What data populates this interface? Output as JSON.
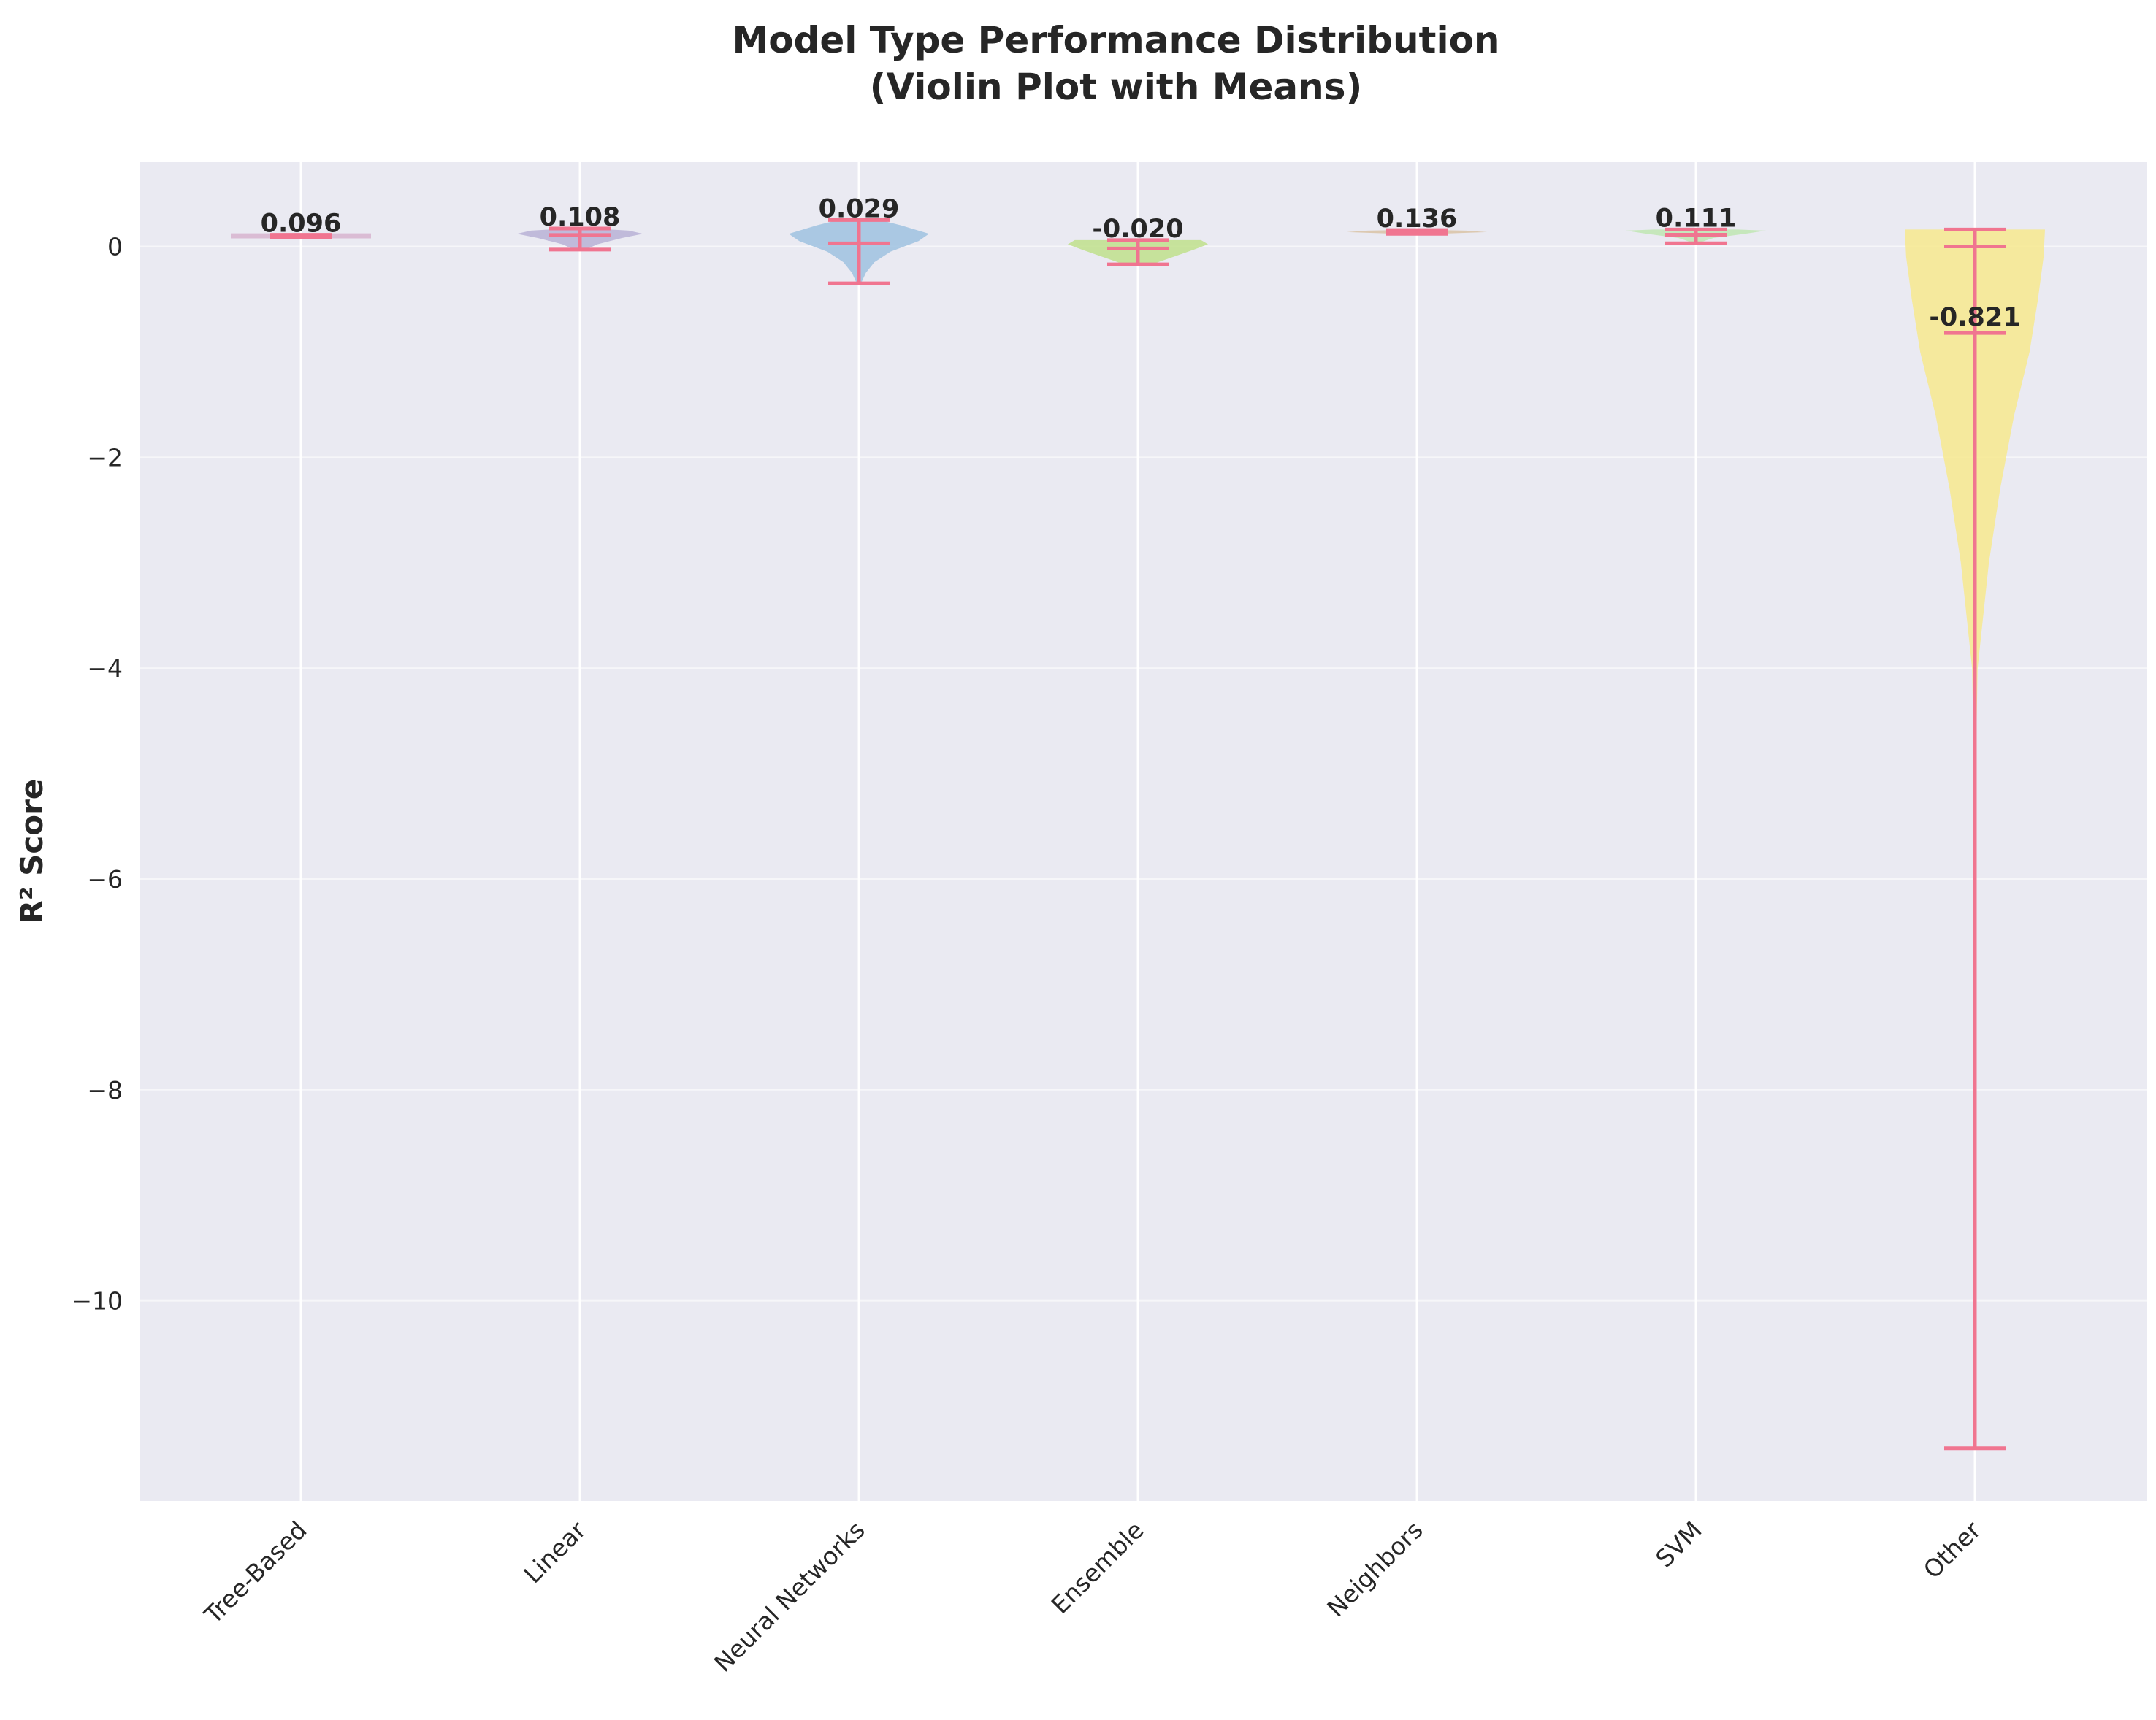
{
  "chart_data": {
    "type": "violin",
    "title": "Model Type Performance Distribution",
    "subtitle": "(Violin Plot with Means)",
    "ylabel": "R² Score",
    "xlabel": "",
    "ylim": [
      -11.9,
      0.8
    ],
    "yticks": [
      0,
      -2,
      -4,
      -6,
      -8,
      -10
    ],
    "ytick_labels": [
      "0",
      "−2",
      "−4",
      "−6",
      "−8",
      "−10"
    ],
    "grid": true,
    "categories": [
      "Tree-Based",
      "Linear",
      "Neural Networks",
      "Ensemble",
      "Neighbors",
      "SVM",
      "Other"
    ],
    "series": [
      {
        "category": "Tree-Based",
        "color": "#d7b4cf",
        "min": 0.09,
        "max": 0.11,
        "mean": 0.096,
        "mean_label": "0.096",
        "density": [
          [
            0.09,
            0.5
          ],
          [
            0.096,
            0.9
          ],
          [
            0.105,
            0.6
          ],
          [
            0.11,
            0.2
          ]
        ]
      },
      {
        "category": "Linear",
        "color": "#b9b1d6",
        "min": -0.03,
        "max": 0.17,
        "mean": 0.108,
        "mean_label": "0.108",
        "density": [
          [
            -0.03,
            0.08
          ],
          [
            0.02,
            0.25
          ],
          [
            0.08,
            0.6
          ],
          [
            0.12,
            0.9
          ],
          [
            0.15,
            0.7
          ],
          [
            0.17,
            0.2
          ]
        ]
      },
      {
        "category": "Neural Networks",
        "color": "#9fc2e0",
        "min": -0.35,
        "max": 0.25,
        "mean": 0.029,
        "mean_label": "0.029",
        "density": [
          [
            -0.35,
            0.03
          ],
          [
            -0.25,
            0.1
          ],
          [
            -0.15,
            0.22
          ],
          [
            -0.05,
            0.45
          ],
          [
            0.05,
            0.85
          ],
          [
            0.12,
            1.0
          ],
          [
            0.2,
            0.6
          ],
          [
            0.25,
            0.3
          ]
        ]
      },
      {
        "category": "Ensemble",
        "color": "#bfe08c",
        "min": -0.17,
        "max": 0.06,
        "mean": -0.02,
        "mean_label": "-0.020",
        "density": [
          [
            -0.17,
            0.2
          ],
          [
            -0.1,
            0.5
          ],
          [
            -0.03,
            0.8
          ],
          [
            0.02,
            1.0
          ],
          [
            0.06,
            0.9
          ]
        ]
      },
      {
        "category": "Neighbors",
        "color": "#d9c3a6",
        "min": 0.12,
        "max": 0.155,
        "mean": 0.136,
        "mean_label": "0.136",
        "density": [
          [
            0.12,
            0.3
          ],
          [
            0.136,
            1.0
          ],
          [
            0.15,
            0.7
          ],
          [
            0.155,
            0.3
          ]
        ]
      },
      {
        "category": "SVM",
        "color": "#bfe6b3",
        "min": 0.03,
        "max": 0.16,
        "mean": 0.111,
        "mean_label": "0.111",
        "density": [
          [
            0.03,
            0.02
          ],
          [
            0.08,
            0.25
          ],
          [
            0.12,
            0.7
          ],
          [
            0.15,
            1.0
          ],
          [
            0.16,
            0.6
          ]
        ]
      },
      {
        "category": "Other",
        "color": "#f7e98e",
        "min": -11.4,
        "max": 0.16,
        "median": 0.0,
        "mean": -0.821,
        "mean_label": "-0.821",
        "density": [
          [
            -11.4,
            0.0
          ],
          [
            -9.0,
            0.003
          ],
          [
            -7.0,
            0.006
          ],
          [
            -5.0,
            0.012
          ],
          [
            -4.0,
            0.04
          ],
          [
            -3.0,
            0.2
          ],
          [
            -2.3,
            0.36
          ],
          [
            -1.6,
            0.56
          ],
          [
            -1.0,
            0.78
          ],
          [
            -0.5,
            0.9
          ],
          [
            -0.1,
            0.98
          ],
          [
            0.16,
            1.0
          ]
        ]
      }
    ]
  }
}
